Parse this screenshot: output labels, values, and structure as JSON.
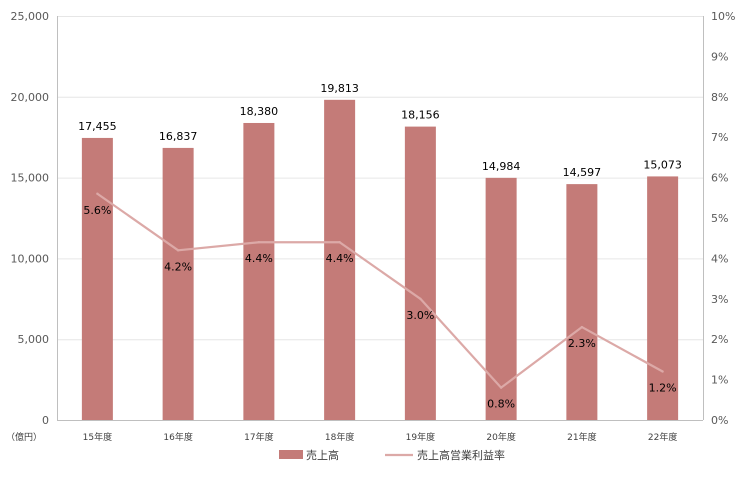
{
  "chart_data": {
    "type": "bar+line",
    "categories": [
      "15年度",
      "16年度",
      "17年度",
      "18年度",
      "19年度",
      "20年度",
      "21年度",
      "22年度"
    ],
    "series": [
      {
        "name": "売上高",
        "type": "bar",
        "axis": "left",
        "color": "#C47B78",
        "values": [
          17455,
          16837,
          18380,
          19813,
          18156,
          14984,
          14597,
          15073
        ],
        "labels": [
          "17,455",
          "16,837",
          "18,380",
          "19,813",
          "18,156",
          "14,984",
          "14,597",
          "15,073"
        ]
      },
      {
        "name": "売上高営業利益率",
        "type": "line",
        "axis": "right",
        "color": "#DCA9A7",
        "values": [
          5.6,
          4.2,
          4.4,
          4.4,
          3.0,
          0.8,
          2.3,
          1.2
        ],
        "labels": [
          "5.6%",
          "4.2%",
          "4.4%",
          "4.4%",
          "3.0%",
          "0.8%",
          "2.3%",
          "1.2%"
        ]
      }
    ],
    "left_axis": {
      "unit_label": "（億円）",
      "ylim": [
        0,
        25000
      ],
      "ticks": [
        0,
        5000,
        10000,
        15000,
        20000,
        25000
      ],
      "tick_labels": [
        "0",
        "5,000",
        "10,000",
        "15,000",
        "20,000",
        "25,000"
      ]
    },
    "right_axis": {
      "ylim": [
        0,
        10
      ],
      "ticks": [
        0,
        1,
        2,
        3,
        4,
        5,
        6,
        7,
        8,
        9,
        10
      ],
      "tick_labels": [
        "0%",
        "1%",
        "2%",
        "3%",
        "4%",
        "5%",
        "6%",
        "7%",
        "8%",
        "9%",
        "10%"
      ]
    },
    "grid": true,
    "legend": "bottom-center"
  }
}
